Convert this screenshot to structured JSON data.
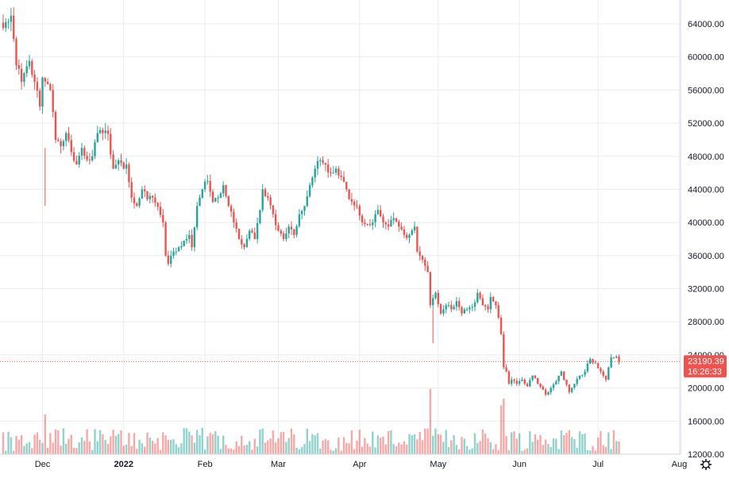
{
  "chart_data": {
    "type": "candlestick",
    "title": "",
    "xlabel": "",
    "ylabel": "",
    "ylim": [
      12000,
      67000
    ],
    "grid": true,
    "y_ticks": [
      "12000.00",
      "16000.00",
      "20000.00",
      "24000.00",
      "28000.00",
      "32000.00",
      "36000.00",
      "40000.00",
      "44000.00",
      "48000.00",
      "52000.00",
      "56000.00",
      "60000.00",
      "64000.00"
    ],
    "x_ticks": [
      {
        "label": "Dec",
        "index": 15,
        "bold": false
      },
      {
        "label": "2022",
        "index": 46,
        "bold": true
      },
      {
        "label": "Feb",
        "index": 77,
        "bold": false
      },
      {
        "label": "Mar",
        "index": 105,
        "bold": false
      },
      {
        "label": "Apr",
        "index": 136,
        "bold": false
      },
      {
        "label": "May",
        "index": 166,
        "bold": false
      },
      {
        "label": "Jun",
        "index": 197,
        "bold": false
      },
      {
        "label": "Jul",
        "index": 227,
        "bold": false
      },
      {
        "label": "Aug",
        "index": 258,
        "bold": false
      }
    ],
    "anchors_close": [
      [
        0,
        63500
      ],
      [
        3,
        65000
      ],
      [
        5,
        59000
      ],
      [
        7,
        57000
      ],
      [
        10,
        59500
      ],
      [
        12,
        57000
      ],
      [
        14,
        54000
      ],
      [
        15,
        57500
      ],
      [
        16,
        57000
      ],
      [
        18,
        56000
      ],
      [
        20,
        50000
      ],
      [
        22,
        49200
      ],
      [
        24,
        50800
      ],
      [
        26,
        48500
      ],
      [
        28,
        47000
      ],
      [
        30,
        49000
      ],
      [
        32,
        47600
      ],
      [
        34,
        48000
      ],
      [
        36,
        50800
      ],
      [
        38,
        50800
      ],
      [
        40,
        50700
      ],
      [
        42,
        46500
      ],
      [
        44,
        47500
      ],
      [
        46,
        46500
      ],
      [
        47,
        47000
      ],
      [
        49,
        43000
      ],
      [
        51,
        42000
      ],
      [
        53,
        44000
      ],
      [
        55,
        42800
      ],
      [
        57,
        43000
      ],
      [
        59,
        41900
      ],
      [
        61,
        40000
      ],
      [
        62,
        36000
      ],
      [
        63,
        35000
      ],
      [
        65,
        36500
      ],
      [
        67,
        37000
      ],
      [
        69,
        37800
      ],
      [
        71,
        38500
      ],
      [
        72,
        37000
      ],
      [
        74,
        42000
      ],
      [
        76,
        44000
      ],
      [
        78,
        45000
      ],
      [
        80,
        42500
      ],
      [
        82,
        43000
      ],
      [
        84,
        44500
      ],
      [
        86,
        42000
      ],
      [
        88,
        40000
      ],
      [
        90,
        38000
      ],
      [
        92,
        37000
      ],
      [
        94,
        39000
      ],
      [
        96,
        38000
      ],
      [
        98,
        41500
      ],
      [
        99,
        44000
      ],
      [
        101,
        43000
      ],
      [
        103,
        41000
      ],
      [
        105,
        39000
      ],
      [
        107,
        38000
      ],
      [
        109,
        39500
      ],
      [
        111,
        38500
      ],
      [
        113,
        41000
      ],
      [
        115,
        42000
      ],
      [
        117,
        44500
      ],
      [
        119,
        46500
      ],
      [
        121,
        47500
      ],
      [
        123,
        47000
      ],
      [
        125,
        46000
      ],
      [
        127,
        46500
      ],
      [
        129,
        45500
      ],
      [
        131,
        44000
      ],
      [
        133,
        42500
      ],
      [
        135,
        42000
      ],
      [
        137,
        40000
      ],
      [
        139,
        39800
      ],
      [
        141,
        40000
      ],
      [
        143,
        41500
      ],
      [
        145,
        40000
      ],
      [
        147,
        39500
      ],
      [
        149,
        40500
      ],
      [
        151,
        39500
      ],
      [
        153,
        38500
      ],
      [
        155,
        38500
      ],
      [
        157,
        39500
      ],
      [
        158,
        36500
      ],
      [
        160,
        35500
      ],
      [
        162,
        34000
      ],
      [
        163,
        30000
      ],
      [
        165,
        31500
      ],
      [
        167,
        29000
      ],
      [
        169,
        30000
      ],
      [
        171,
        29500
      ],
      [
        173,
        30500
      ],
      [
        175,
        29000
      ],
      [
        177,
        29500
      ],
      [
        179,
        29800
      ],
      [
        181,
        31500
      ],
      [
        183,
        30000
      ],
      [
        185,
        29500
      ],
      [
        186,
        31000
      ],
      [
        188,
        30000
      ],
      [
        189,
        28500
      ],
      [
        190,
        26500
      ],
      [
        191,
        22500
      ],
      [
        192,
        22000
      ],
      [
        193,
        20500
      ],
      [
        194,
        21000
      ],
      [
        196,
        20500
      ],
      [
        198,
        21000
      ],
      [
        200,
        20200
      ],
      [
        202,
        21500
      ],
      [
        204,
        20500
      ],
      [
        206,
        19800
      ],
      [
        207,
        19200
      ],
      [
        209,
        20000
      ],
      [
        211,
        20800
      ],
      [
        213,
        22000
      ],
      [
        214,
        21000
      ],
      [
        216,
        19500
      ],
      [
        218,
        20500
      ],
      [
        220,
        21500
      ],
      [
        222,
        22000
      ],
      [
        224,
        23500
      ],
      [
        226,
        23000
      ],
      [
        228,
        22000
      ],
      [
        230,
        21000
      ],
      [
        232,
        23700
      ],
      [
        234,
        23800
      ],
      [
        235,
        23200
      ]
    ],
    "volume_spikes": [
      [
        16,
        16800
      ],
      [
        163,
        19900
      ],
      [
        190,
        17900
      ],
      [
        191,
        18700
      ],
      [
        189,
        12500
      ]
    ],
    "last_price": "23190.39",
    "countdown": "16:26:33",
    "colors": {
      "up": "#26a69a",
      "down": "#ef5350",
      "grid": "#e8ecf1",
      "axis_text": "#131722",
      "price_tag": "#ef5350"
    }
  }
}
